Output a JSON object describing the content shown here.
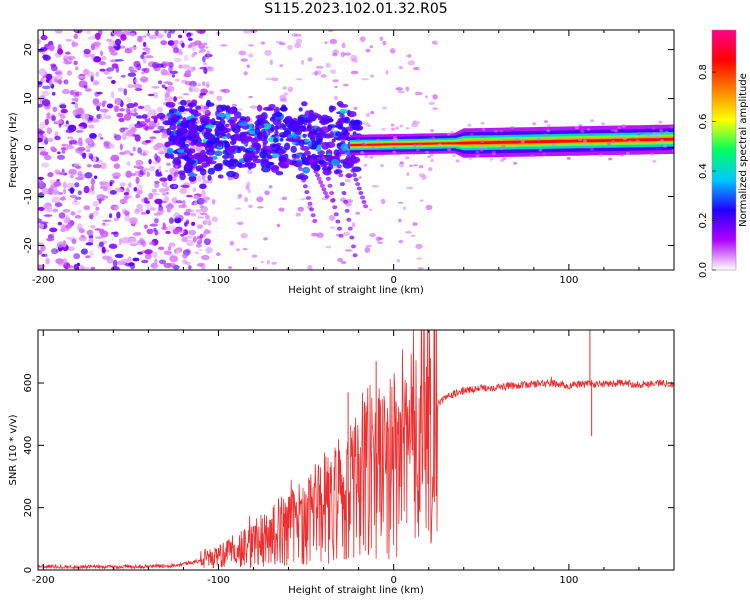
{
  "title": "S115.2023.102.01.32.R05",
  "spectrogram": {
    "xlabel": "Height of straight line (km)",
    "ylabel": "Frequency (Hz)",
    "xlim": [
      -203,
      160
    ],
    "ylim": [
      -25,
      24
    ],
    "xticks": [
      -200,
      -100,
      0,
      100
    ],
    "yticks": [
      -20,
      -10,
      0,
      10,
      20
    ],
    "xtick_labels": [
      "-200",
      "-100",
      "0",
      "100"
    ],
    "ytick_labels": [
      "-20",
      "-10",
      "0",
      "10",
      "20"
    ],
    "colorbar": {
      "label": "Normalized spectral amplitude",
      "range": [
        0,
        0.97
      ],
      "ticks": [
        0.0,
        0.2,
        0.4,
        0.6,
        0.8
      ],
      "tick_labels": [
        "0.0",
        "0.2",
        "0.4",
        "0.6",
        "0.8"
      ],
      "colors": [
        "#ffffff",
        "#b000ff",
        "#2000ff",
        "#00c8ff",
        "#00ff60",
        "#ffff00",
        "#ff8000",
        "#ff0000",
        "#ff0090"
      ]
    }
  },
  "chart_data": [
    {
      "type": "heatmap",
      "title": "S115.2023.102.01.32.R05",
      "xlabel": "Height of straight line (km)",
      "ylabel": "Frequency (Hz)",
      "xlim": [
        -203,
        160
      ],
      "ylim": [
        -25,
        24
      ],
      "value_range": [
        0,
        0.97
      ],
      "colorbar_label": "Normalized spectral amplitude",
      "description_regions": [
        {
          "x_range": [
            -203,
            -125
          ],
          "freq_range": [
            -25,
            24
          ],
          "level": 0.25
        },
        {
          "x_range": [
            -125,
            -25
          ],
          "freq_range": [
            -8,
            10
          ],
          "level": 0.35
        },
        {
          "x_range": [
            -25,
            160
          ],
          "freq_center": 1,
          "level": 0.9
        }
      ]
    },
    {
      "type": "line",
      "xlabel": "Height of straight line (km)",
      "ylabel": "SNR (10 * v/v)",
      "xlim": [
        -203,
        160
      ],
      "ylim": [
        0,
        770
      ],
      "xticks": [
        -200,
        -100,
        0,
        100
      ],
      "yticks": [
        0,
        200,
        400,
        600
      ],
      "xtick_labels": [
        "-200",
        "-100",
        "0",
        "100"
      ],
      "ytick_labels": [
        "0",
        "200",
        "400",
        "600"
      ],
      "series_color": "#ee2e2e",
      "x": [
        -203,
        -180,
        -160,
        -140,
        -125,
        -115,
        -100,
        -90,
        -80,
        -70,
        -60,
        -50,
        -40,
        -30,
        -25,
        -20,
        -15,
        -10,
        -5,
        0,
        5,
        10,
        15,
        20,
        25,
        30,
        35,
        40,
        50,
        60,
        70,
        80,
        90,
        95,
        100,
        105,
        110,
        112,
        115,
        120,
        130,
        140,
        150,
        160
      ],
      "y": [
        12,
        10,
        10,
        12,
        15,
        25,
        40,
        60,
        90,
        110,
        140,
        160,
        190,
        220,
        250,
        270,
        290,
        300,
        320,
        340,
        350,
        380,
        420,
        480,
        530,
        555,
        565,
        575,
        583,
        587,
        592,
        597,
        600,
        595,
        590,
        595,
        598,
        600,
        595,
        597,
        600,
        595,
        600,
        598
      ],
      "spikes": [
        {
          "x": -26,
          "y": 570
        },
        {
          "x": -10,
          "y": 670
        },
        {
          "x": 90,
          "y": 620
        },
        {
          "x": 112,
          "y": 770
        },
        {
          "x": 113,
          "y": 430
        }
      ]
    }
  ],
  "snr_plot": {
    "xlabel": "Height of straight line (km)",
    "ylabel": "SNR (10 * v/v)"
  }
}
